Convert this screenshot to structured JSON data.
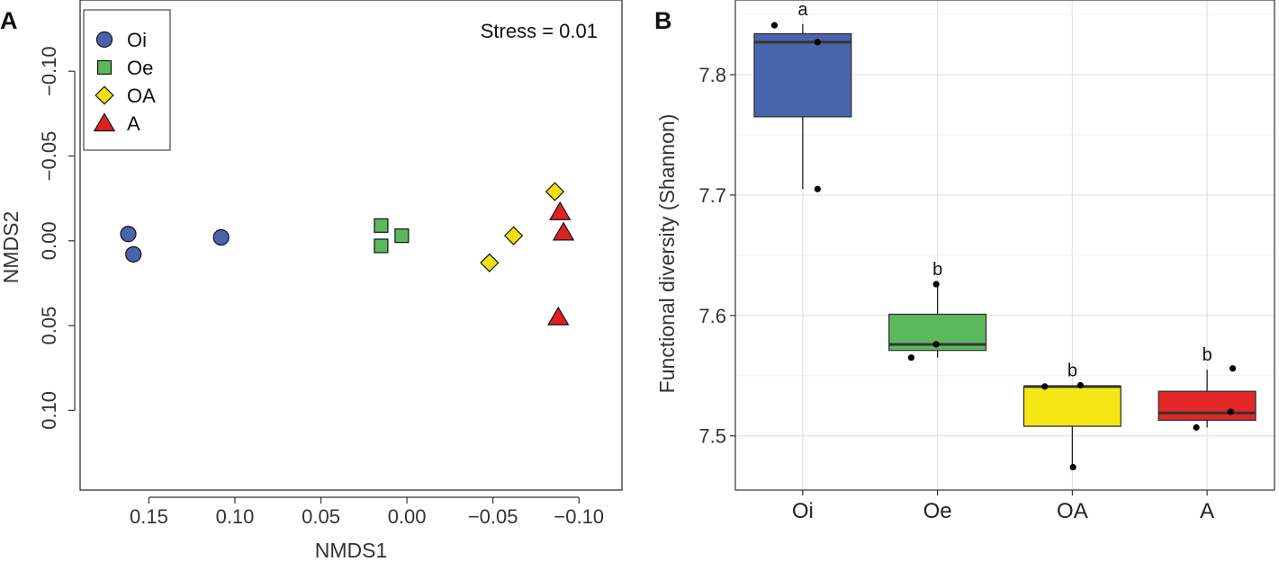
{
  "chart_data": [
    {
      "panel": "A",
      "type": "scatter",
      "xlabel": "NMDS1",
      "ylabel": "NMDS2",
      "xlim": [
        0.19,
        -0.125
      ],
      "ylim": [
        -0.142,
        0.147
      ],
      "x_reversed": true,
      "y_reversed": true,
      "x_ticks": [
        0.15,
        0.1,
        0.05,
        0.0,
        -0.05,
        -0.1
      ],
      "x_tick_labels": [
        "0.15",
        "0.10",
        "0.05",
        "0.00",
        "−0.05",
        "−0.10"
      ],
      "y_ticks": [
        -0.1,
        -0.05,
        0.0,
        0.05,
        0.1
      ],
      "y_tick_labels": [
        "−0.10",
        "−0.05",
        "0.00",
        "0.05",
        "0.10"
      ],
      "annotation": "Stress = 0.01",
      "legend_position": "top-left",
      "grid": false,
      "series": [
        {
          "name": "Oi",
          "marker": "circle",
          "color": "#4a63ad",
          "points": [
            [
              0.162,
              -0.004
            ],
            [
              0.159,
              0.008
            ],
            [
              0.108,
              -0.002
            ]
          ]
        },
        {
          "name": "Oe",
          "marker": "square",
          "color": "#5cb85c",
          "points": [
            [
              0.015,
              -0.009
            ],
            [
              0.015,
              0.003
            ],
            [
              0.003,
              -0.003
            ]
          ]
        },
        {
          "name": "OA",
          "marker": "diamond",
          "color": "#f0e010",
          "points": [
            [
              -0.048,
              0.013
            ],
            [
              -0.062,
              -0.003
            ],
            [
              -0.086,
              -0.029
            ]
          ]
        },
        {
          "name": "A",
          "marker": "triangle",
          "color": "#e02020",
          "points": [
            [
              -0.089,
              -0.017
            ],
            [
              -0.091,
              -0.005
            ],
            [
              -0.088,
              0.045
            ]
          ]
        }
      ]
    },
    {
      "panel": "B",
      "type": "box",
      "ylabel": "Functional diversity (Shannon)",
      "xlabel": "",
      "ylim": [
        7.455,
        7.862
      ],
      "y_ticks": [
        7.5,
        7.6,
        7.7,
        7.8
      ],
      "y_tick_labels": [
        "7.5",
        "7.6",
        "7.7",
        "7.8"
      ],
      "grid": true,
      "categories": [
        "Oi",
        "Oe",
        "OA",
        "A"
      ],
      "colors": [
        "#4a63ad",
        "#5cb85c",
        "#f5e616",
        "#e32726"
      ],
      "boxes": [
        {
          "category": "Oi",
          "min": 7.705,
          "q1": 7.765,
          "median": 7.827,
          "q3": 7.834,
          "max": 7.842,
          "letter": "a"
        },
        {
          "category": "Oe",
          "min": 7.565,
          "q1": 7.571,
          "median": 7.576,
          "q3": 7.601,
          "max": 7.626,
          "letter": "b"
        },
        {
          "category": "OA",
          "min": 7.474,
          "q1": 7.508,
          "median": 7.541,
          "q3": 7.541,
          "max": 7.542,
          "letter": "b"
        },
        {
          "category": "A",
          "min": 7.507,
          "q1": 7.513,
          "median": 7.519,
          "q3": 7.537,
          "max": 7.555,
          "letter": "b"
        }
      ],
      "points": [
        {
          "category": "Oi",
          "dx": -0.42,
          "y": 7.841
        },
        {
          "category": "Oi",
          "dx": 0.22,
          "y": 7.827
        },
        {
          "category": "Oi",
          "dx": 0.22,
          "y": 7.705
        },
        {
          "category": "Oe",
          "dx": -0.39,
          "y": 7.565
        },
        {
          "category": "Oe",
          "dx": -0.02,
          "y": 7.576
        },
        {
          "category": "Oe",
          "dx": -0.02,
          "y": 7.626
        },
        {
          "category": "OA",
          "dx": -0.41,
          "y": 7.541
        },
        {
          "category": "OA",
          "dx": 0.12,
          "y": 7.542
        },
        {
          "category": "OA",
          "dx": 0.01,
          "y": 7.474
        },
        {
          "category": "A",
          "dx": -0.16,
          "y": 7.507
        },
        {
          "category": "A",
          "dx": 0.38,
          "y": 7.556
        },
        {
          "category": "A",
          "dx": 0.35,
          "y": 7.52
        }
      ]
    }
  ]
}
